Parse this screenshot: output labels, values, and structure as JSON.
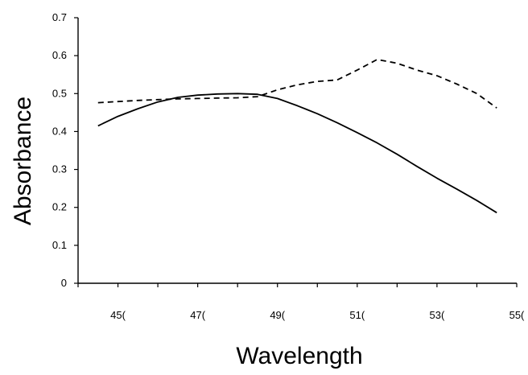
{
  "chart_data": {
    "type": "line",
    "title": "",
    "xlabel": "Wavelength",
    "ylabel": "Absorbance",
    "xlim": [
      440,
      550
    ],
    "ylim": [
      0,
      0.7
    ],
    "x_ticks": [
      440,
      450,
      460,
      470,
      480,
      490,
      500,
      510,
      520,
      530,
      540,
      550
    ],
    "x_tick_labels": [
      {
        "x": 450,
        "label": "45("
      },
      {
        "x": 470,
        "label": "47("
      },
      {
        "x": 490,
        "label": "49("
      },
      {
        "x": 510,
        "label": "51("
      },
      {
        "x": 530,
        "label": "53("
      },
      {
        "x": 550,
        "label": "55("
      }
    ],
    "y_ticks": [
      {
        "y": 0,
        "label": "0"
      },
      {
        "y": 0.1,
        "label": "0.1"
      },
      {
        "y": 0.2,
        "label": "0.2"
      },
      {
        "y": 0.3,
        "label": "0.3"
      },
      {
        "y": 0.4,
        "label": "0.4"
      },
      {
        "y": 0.5,
        "label": "0.5"
      },
      {
        "y": 0.6,
        "label": "0.6"
      },
      {
        "y": 0.7,
        "label": "0.7"
      }
    ],
    "grid": false,
    "legend": "none",
    "series": [
      {
        "style": "solid",
        "color": "#000000",
        "x": [
          445,
          450,
          455,
          460,
          465,
          470,
          475,
          480,
          485,
          490,
          495,
          500,
          505,
          510,
          515,
          520,
          525,
          530,
          535,
          540,
          545
        ],
        "y": [
          0.415,
          0.44,
          0.46,
          0.478,
          0.49,
          0.496,
          0.499,
          0.5,
          0.498,
          0.487,
          0.468,
          0.447,
          0.423,
          0.397,
          0.37,
          0.34,
          0.308,
          0.277,
          0.248,
          0.218,
          0.186
        ]
      },
      {
        "style": "dashed",
        "color": "#000000",
        "x": [
          445,
          450,
          455,
          460,
          465,
          470,
          475,
          480,
          485,
          490,
          495,
          500,
          505,
          510,
          515,
          520,
          525,
          530,
          535,
          540,
          545
        ],
        "y": [
          0.476,
          0.479,
          0.482,
          0.484,
          0.486,
          0.487,
          0.488,
          0.489,
          0.492,
          0.51,
          0.523,
          0.532,
          0.536,
          0.562,
          0.59,
          0.58,
          0.562,
          0.547,
          0.525,
          0.5,
          0.462
        ]
      }
    ]
  }
}
